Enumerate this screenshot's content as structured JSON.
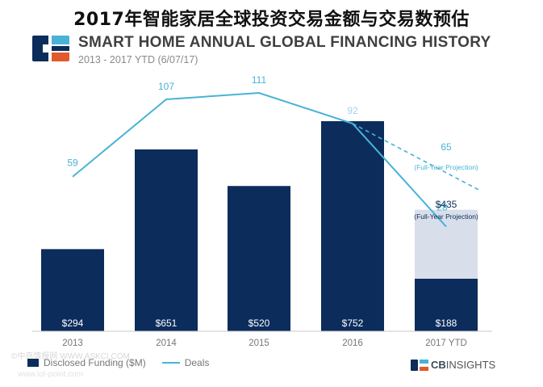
{
  "page_title": "2017年智能家居全球投资交易金额与交易数预估",
  "chart_data": {
    "type": "bar",
    "title": "SMART HOME ANNUAL GLOBAL FINANCING HISTORY",
    "subtitle": "2013 - 2017 YTD (6/07/17)",
    "categories": [
      "2013",
      "2014",
      "2015",
      "2016",
      "2017 YTD"
    ],
    "series": [
      {
        "name": "Disclosed Funding ($M)",
        "type": "bar",
        "values": [
          294,
          651,
          520,
          752,
          188
        ],
        "labels": [
          "$294",
          "$651",
          "$520",
          "$752",
          "$188"
        ],
        "color": "#0c2c5c"
      },
      {
        "name": "Deals",
        "type": "line",
        "values": [
          59,
          107,
          111,
          92,
          28
        ],
        "color": "#48b3d6"
      }
    ],
    "projection": {
      "funding_value": 435,
      "funding_label": "$435",
      "funding_note": "(Full-Year Projection)",
      "deals_value": 65,
      "deals_label": "65",
      "deals_note": "(Full-Year Projection)",
      "color": "#d8dfea"
    },
    "legend": {
      "position": "bottom-left"
    },
    "grid": false
  },
  "watermark": "©中商情报网 WWW.ASKCI.COM",
  "watermark2": "www.iot-point.com",
  "brand": {
    "bold": "CB",
    "light": "INSIGHTS"
  }
}
